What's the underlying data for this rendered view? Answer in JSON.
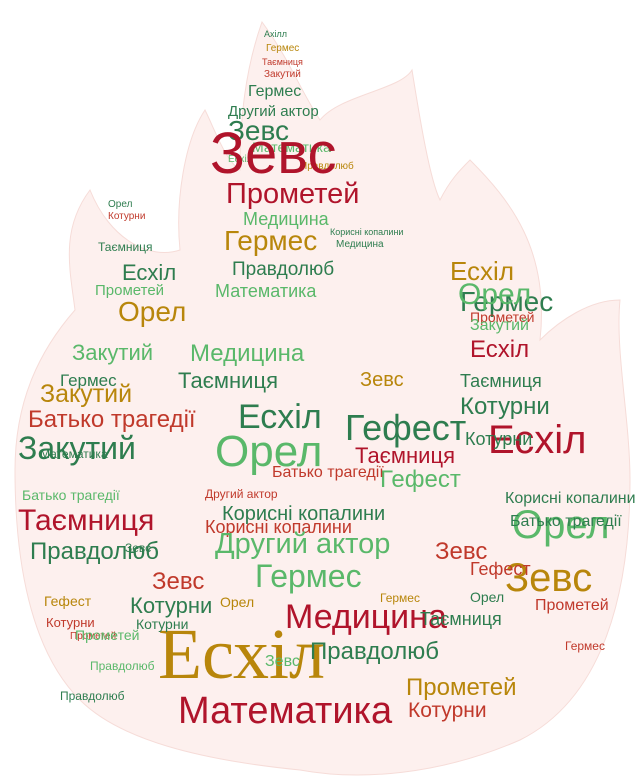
{
  "words": [
    {
      "text": "Ахілл",
      "color": "#2e7d4f",
      "size": "xs"
    },
    {
      "text": "Гермес",
      "color": "#b8860b",
      "size": "xs"
    },
    {
      "text": "Таємниця",
      "color": "#c0392b",
      "size": "xs"
    },
    {
      "text": "Закутий",
      "color": "#c0392b",
      "size": "xs"
    },
    {
      "text": "Гермес",
      "color": "#2e7d4f",
      "size": "s"
    },
    {
      "text": "Другий актор",
      "color": "#2e7d4f",
      "size": "s"
    },
    {
      "text": "Зевс",
      "color": "#2e7d4f",
      "size": "l"
    },
    {
      "text": "Математика",
      "color": "#5ab86a",
      "size": "s"
    },
    {
      "text": "Есхіл",
      "color": "#5ab86a",
      "size": "xs"
    },
    {
      "text": "Правдолюб",
      "color": "#b8860b",
      "size": "xs"
    },
    {
      "text": "Зевс",
      "color": "#b0142b",
      "size": "xxl"
    },
    {
      "text": "Прометей",
      "color": "#b0142b",
      "size": "l"
    },
    {
      "text": "Медицина",
      "color": "#5ab86a",
      "size": "s"
    },
    {
      "text": "Гермес",
      "color": "#b8860b",
      "size": "m"
    },
    {
      "text": "Корисні копалини",
      "color": "#2e7d4f",
      "size": "xs"
    },
    {
      "text": "Правдолюб",
      "color": "#2e7d4f",
      "size": "m"
    },
    {
      "text": "Медицина",
      "color": "#2e7d4f",
      "size": "xs"
    },
    {
      "text": "Математика",
      "color": "#5ab86a",
      "size": "s"
    },
    {
      "text": "Орел",
      "color": "#2e7d4f",
      "size": "xs"
    },
    {
      "text": "Котурни",
      "color": "#c0392b",
      "size": "xs"
    },
    {
      "text": "Таємниця",
      "color": "#2e7d4f",
      "size": "xs"
    },
    {
      "text": "Есхіл",
      "color": "#2e7d4f",
      "size": "m"
    },
    {
      "text": "Прометей",
      "color": "#5ab86a",
      "size": "s"
    },
    {
      "text": "Орел",
      "color": "#b8860b",
      "size": "l"
    },
    {
      "text": "Закутий",
      "color": "#5ab86a",
      "size": "m"
    },
    {
      "text": "Гермес",
      "color": "#2e7d4f",
      "size": "s"
    },
    {
      "text": "Закутий",
      "color": "#b8860b",
      "size": "m"
    },
    {
      "text": "Батько трагедії",
      "color": "#c0392b",
      "size": "m"
    },
    {
      "text": "Закутий",
      "color": "#2e7d4f",
      "size": "xl"
    },
    {
      "text": "Таємниця",
      "color": "#b0142b",
      "size": "l"
    },
    {
      "text": "Батько трагедії",
      "color": "#5ab86a",
      "size": "s"
    },
    {
      "text": "Правдолюб",
      "color": "#2e7d4f",
      "size": "m"
    },
    {
      "text": "Гефест",
      "color": "#b8860b",
      "size": "xs"
    },
    {
      "text": "Котурни",
      "color": "#c0392b",
      "size": "xs"
    },
    {
      "text": "Правдолюб",
      "color": "#2e7d4f",
      "size": "xs"
    },
    {
      "text": "Прометей",
      "color": "#c0392b",
      "size": "xs"
    },
    {
      "text": "Медицина",
      "color": "#5ab86a",
      "size": "m"
    },
    {
      "text": "Таємниця",
      "color": "#2e7d4f",
      "size": "m"
    },
    {
      "text": "Есхіл",
      "color": "#2e7d4f",
      "size": "l"
    },
    {
      "text": "Гефест",
      "color": "#2e7d4f",
      "size": "l"
    },
    {
      "text": "Орел",
      "color": "#5ab86a",
      "size": "xl"
    },
    {
      "text": "Другий актор",
      "color": "#c0392b",
      "size": "xs"
    },
    {
      "text": "Корисні копалини",
      "color": "#2e7d4f",
      "size": "s"
    },
    {
      "text": "Зевс",
      "color": "#b8860b",
      "size": "m"
    },
    {
      "text": "Таємниця",
      "color": "#b0142b",
      "size": "m"
    },
    {
      "text": "Гефест",
      "color": "#5ab86a",
      "size": "m"
    },
    {
      "text": "Батько трагедії",
      "color": "#c0392b",
      "size": "s"
    },
    {
      "text": "Корисні копалини",
      "color": "#c0392b",
      "size": "m"
    },
    {
      "text": "Другий актор",
      "color": "#5ab86a",
      "size": "l"
    },
    {
      "text": "Гермес",
      "color": "#5ab86a",
      "size": "l"
    },
    {
      "text": "Зевс",
      "color": "#c0392b",
      "size": "m"
    },
    {
      "text": "Котурни",
      "color": "#2e7d4f",
      "size": "m"
    },
    {
      "text": "Медицина",
      "color": "#b0142b",
      "size": "l"
    },
    {
      "text": "Есхіл",
      "color": "#b8860b",
      "size": "xxxl"
    },
    {
      "text": "Зевс",
      "color": "#5ab86a",
      "size": "s"
    },
    {
      "text": "Правдолюб",
      "color": "#2e7d4f",
      "size": "s"
    },
    {
      "text": "Математика",
      "color": "#b0142b",
      "size": "l"
    },
    {
      "text": "Прометей",
      "color": "#b8860b",
      "size": "m"
    },
    {
      "text": "Котурни",
      "color": "#c0392b",
      "size": "m"
    },
    {
      "text": "Есхіл",
      "color": "#b0142b",
      "size": "xl"
    },
    {
      "text": "Котурни",
      "color": "#2e7d4f",
      "size": "m"
    },
    {
      "text": "Орел",
      "color": "#5ab86a",
      "size": "xl"
    },
    {
      "text": "Зевс",
      "color": "#b8860b",
      "size": "xl"
    },
    {
      "text": "Батько трагедії",
      "color": "#2e7d4f",
      "size": "s"
    },
    {
      "text": "Корисні копалини",
      "color": "#2e7d4f",
      "size": "s"
    },
    {
      "text": "Гермес",
      "color": "#2e7d4f",
      "size": "s"
    },
    {
      "text": "Прометей",
      "color": "#c0392b",
      "size": "s"
    },
    {
      "text": "Таємниця",
      "color": "#2e7d4f",
      "size": "s"
    },
    {
      "text": "Есхіл",
      "color": "#b8860b",
      "size": "m"
    },
    {
      "text": "Котурни",
      "color": "#2e7d4f",
      "size": "s"
    },
    {
      "text": "Орел",
      "color": "#5ab86a",
      "size": "m"
    },
    {
      "text": "Закутий",
      "color": "#5ab86a",
      "size": "s"
    },
    {
      "text": "Есхіл",
      "color": "#b0142b",
      "size": "m"
    },
    {
      "text": "Таємниця",
      "color": "#2e7d4f",
      "size": "s"
    },
    {
      "text": "Зевс",
      "color": "#c0392b",
      "size": "s"
    },
    {
      "text": "Гермес",
      "color": "#b8860b",
      "size": "xs"
    },
    {
      "text": "Орел",
      "color": "#2e7d4f",
      "size": "s"
    },
    {
      "text": "Прометей",
      "color": "#c0392b",
      "size": "s"
    },
    {
      "text": "Зевс",
      "color": "#2e7d4f",
      "size": "s"
    },
    {
      "text": "Гефест",
      "color": "#c0392b",
      "size": "s"
    },
    {
      "text": "Прометей",
      "color": "#5ab86a",
      "size": "s"
    },
    {
      "text": "Котурни",
      "color": "#2e7d4f",
      "size": "s"
    },
    {
      "text": "Орел",
      "color": "#b8860b",
      "size": "s"
    },
    {
      "text": "Математика",
      "color": "#2e7d4f",
      "size": "s"
    },
    {
      "text": "Гермес",
      "color": "#c0392b",
      "size": "s"
    },
    {
      "text": "Правдолюб",
      "color": "#5ab86a",
      "size": "s"
    }
  ],
  "colors": {
    "flame_fill": "#fdf0ee",
    "dark_green": "#2e7d4f",
    "light_green": "#5ab86a",
    "crimson": "#b0142b",
    "red": "#c0392b",
    "gold": "#b8860b"
  }
}
